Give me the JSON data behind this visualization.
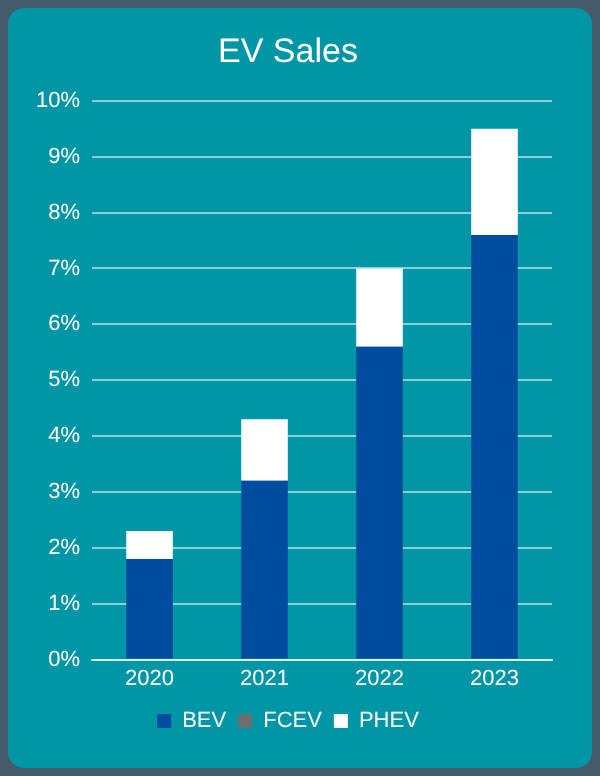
{
  "chart_data": {
    "type": "bar",
    "title": "EV Sales",
    "categories": [
      "2020",
      "2021",
      "2022",
      "2023"
    ],
    "stacked": true,
    "series": [
      {
        "name": "BEV",
        "color": "#004c9f",
        "values": [
          1.8,
          3.2,
          5.6,
          7.6
        ]
      },
      {
        "name": "FCEV",
        "color": "#6d6e71",
        "values": [
          0,
          0,
          0,
          0
        ]
      },
      {
        "name": "PHEV",
        "color": "#ffffff",
        "values": [
          0.5,
          1.1,
          1.4,
          1.9
        ]
      }
    ],
    "ylim": [
      0,
      10
    ],
    "yticks": [
      {
        "value": 0,
        "label": "0%"
      },
      {
        "value": 1,
        "label": "1%"
      },
      {
        "value": 2,
        "label": "2%"
      },
      {
        "value": 3,
        "label": "3%"
      },
      {
        "value": 4,
        "label": "4%"
      },
      {
        "value": 5,
        "label": "5%"
      },
      {
        "value": 6,
        "label": "6%"
      },
      {
        "value": 7,
        "label": "7%"
      },
      {
        "value": 8,
        "label": "8%"
      },
      {
        "value": 9,
        "label": "9%"
      },
      {
        "value": 10,
        "label": "10%"
      }
    ],
    "grid": "y",
    "legend": "bottom"
  }
}
